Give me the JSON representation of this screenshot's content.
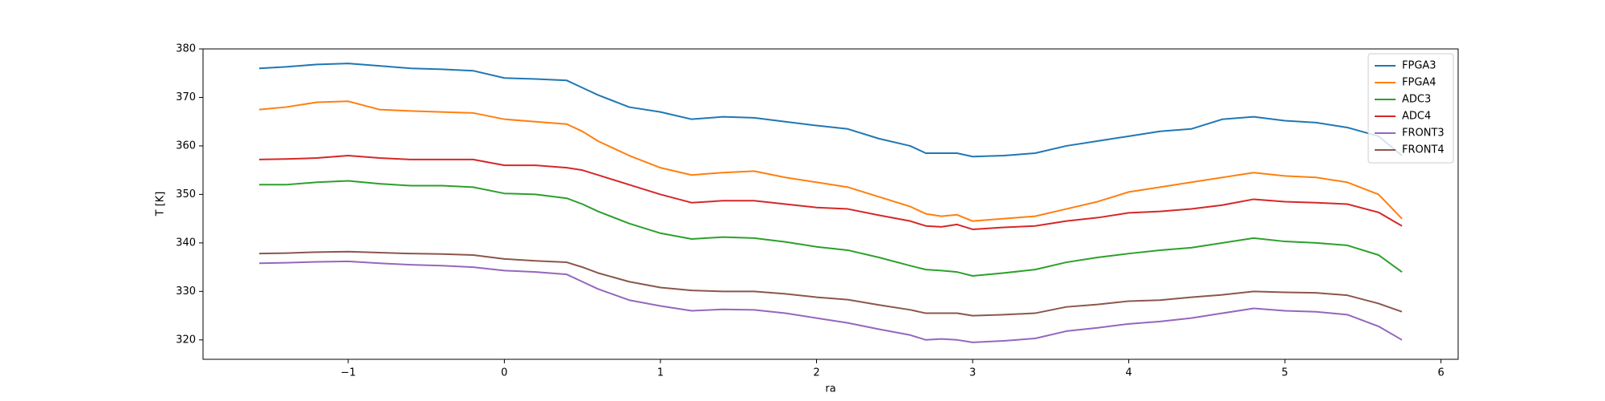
{
  "chart_data": {
    "type": "line",
    "xlabel": "ra",
    "ylabel": "T [K]",
    "xlim": [
      -1.93,
      6.11
    ],
    "ylim": [
      316,
      380
    ],
    "xticks": [
      {
        "value": -1,
        "label": "−1"
      },
      0,
      1,
      2,
      3,
      4,
      5,
      6
    ],
    "yticks": [
      320,
      330,
      340,
      350,
      360,
      370,
      380
    ],
    "legend": "upper right",
    "x": [
      -1.57,
      -1.4,
      -1.2,
      -1.0,
      -0.8,
      -0.6,
      -0.4,
      -0.2,
      0,
      0.2,
      0.4,
      0.5,
      0.6,
      0.8,
      1.0,
      1.2,
      1.4,
      1.6,
      1.8,
      2.0,
      2.2,
      2.4,
      2.6,
      2.7,
      2.8,
      2.9,
      3.0,
      3.2,
      3.4,
      3.6,
      3.8,
      4.0,
      4.2,
      4.4,
      4.6,
      4.8,
      5.0,
      5.2,
      5.4,
      5.6,
      5.75
    ],
    "series": [
      {
        "name": "FPGA3",
        "color": "#1f77b4",
        "values": [
          376,
          376.3,
          376.8,
          377,
          376.5,
          376,
          375.8,
          375.5,
          374,
          373.8,
          373.5,
          372,
          370.5,
          368,
          367,
          365.5,
          366,
          365.8,
          365,
          364.2,
          363.5,
          361.5,
          360,
          358.5,
          358.5,
          358.5,
          357.8,
          358,
          358.5,
          360,
          361,
          362,
          363,
          363.5,
          365.5,
          366,
          365.2,
          364.8,
          363.8,
          362,
          358
        ]
      },
      {
        "name": "FPGA4",
        "color": "#ff7f0e",
        "values": [
          367.5,
          368,
          369,
          369.2,
          367.5,
          367.2,
          367,
          366.8,
          365.5,
          365,
          364.5,
          363,
          361,
          358,
          355.5,
          354,
          354.5,
          354.8,
          353.5,
          352.5,
          351.5,
          349.5,
          347.5,
          346,
          345.5,
          345.8,
          344.5,
          345,
          345.5,
          347,
          348.5,
          350.5,
          351.5,
          352.5,
          353.5,
          354.5,
          353.8,
          353.5,
          352.5,
          350,
          345
        ]
      },
      {
        "name": "ADC3",
        "color": "#2ca02c",
        "values": [
          352,
          352,
          352.5,
          352.8,
          352.2,
          351.8,
          351.8,
          351.5,
          350.2,
          350,
          349.2,
          348,
          346.5,
          344,
          342,
          340.8,
          341.2,
          341,
          340.2,
          339.2,
          338.5,
          337,
          335.3,
          334.5,
          334.3,
          334,
          333.2,
          333.8,
          334.5,
          336,
          337,
          337.8,
          338.5,
          339,
          340,
          341,
          340.3,
          340,
          339.5,
          337.5,
          334
        ]
      },
      {
        "name": "ADC4",
        "color": "#d62728",
        "values": [
          357.2,
          357.3,
          357.5,
          358,
          357.5,
          357.2,
          357.2,
          357.2,
          356,
          356,
          355.5,
          355,
          354,
          352,
          350,
          348.3,
          348.7,
          348.7,
          348,
          347.3,
          347,
          345.7,
          344.5,
          343.5,
          343.3,
          343.8,
          342.8,
          343.2,
          343.5,
          344.5,
          345.2,
          346.2,
          346.5,
          347,
          347.8,
          349,
          348.5,
          348.3,
          348,
          346.3,
          343.5
        ]
      },
      {
        "name": "FRONT3",
        "color": "#9467bd",
        "values": [
          335.8,
          335.9,
          336.1,
          336.2,
          335.8,
          335.5,
          335.3,
          335,
          334.3,
          334,
          333.5,
          332,
          330.5,
          328.2,
          327,
          326,
          326.3,
          326.2,
          325.5,
          324.5,
          323.5,
          322.2,
          321,
          320,
          320.2,
          320,
          319.5,
          319.8,
          320.3,
          321.8,
          322.5,
          323.3,
          323.8,
          324.5,
          325.5,
          326.5,
          326,
          325.8,
          325.2,
          322.8,
          320
        ]
      },
      {
        "name": "FRONT4",
        "color": "#8c564b",
        "values": [
          337.8,
          337.9,
          338.1,
          338.2,
          338,
          337.8,
          337.7,
          337.5,
          336.7,
          336.3,
          336,
          335,
          333.8,
          332,
          330.8,
          330.2,
          330,
          330,
          329.5,
          328.8,
          328.3,
          327.2,
          326.2,
          325.5,
          325.5,
          325.5,
          325,
          325.2,
          325.5,
          326.8,
          327.3,
          328,
          328.2,
          328.8,
          329.3,
          330,
          329.8,
          329.7,
          329.2,
          327.5,
          325.8
        ]
      }
    ]
  }
}
